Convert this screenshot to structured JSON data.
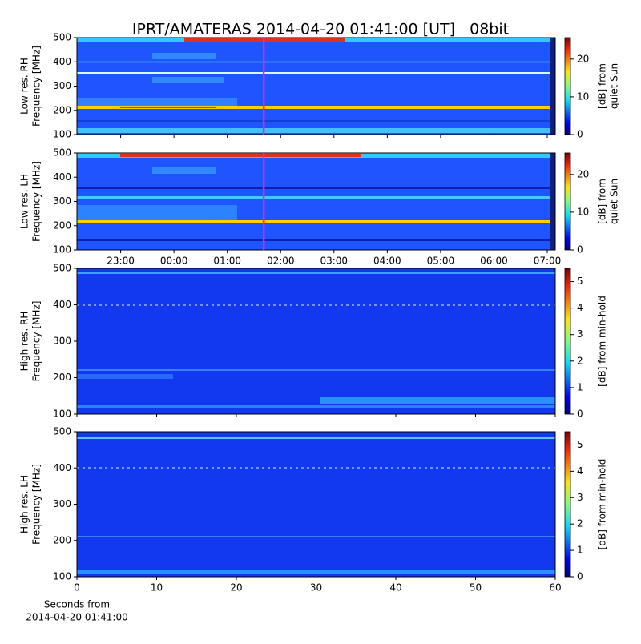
{
  "title": "IPRT/AMATERAS 2014-04-20 01:41:00 [UT]   08bit",
  "chart_data": [
    {
      "type": "heatmap",
      "ylabel": [
        "Low res. RH",
        "Frequency [MHz]"
      ],
      "ylim": [
        100,
        500
      ],
      "yticks": [
        100,
        200,
        300,
        400,
        500
      ],
      "xlim": [
        22.18,
        31.15
      ],
      "vline": 25.683,
      "vline_color": "#d62ad6",
      "colormap": "jet",
      "clim": [
        0,
        25.7
      ],
      "cticks": [
        0,
        10,
        20
      ],
      "clabel": [
        "[dB] from",
        "quiet Sun"
      ]
    },
    {
      "type": "heatmap",
      "ylabel": [
        "Low res. LH",
        "Frequency [MHz]"
      ],
      "ylim": [
        100,
        500
      ],
      "yticks": [
        100,
        200,
        300,
        400,
        500
      ],
      "xlim": [
        22.18,
        31.15
      ],
      "xticks": [
        {
          "value": 23,
          "label": "23:00"
        },
        {
          "value": 24,
          "label": "00:00"
        },
        {
          "value": 25,
          "label": "01:00"
        },
        {
          "value": 26,
          "label": "02:00"
        },
        {
          "value": 27,
          "label": "03:00"
        },
        {
          "value": 28,
          "label": "04:00"
        },
        {
          "value": 29,
          "label": "05:00"
        },
        {
          "value": 30,
          "label": "06:00"
        },
        {
          "value": 31,
          "label": "07:00"
        }
      ],
      "vline": 25.683,
      "vline_color": "#d62ad6",
      "colormap": "jet",
      "clim": [
        0,
        25.7
      ],
      "cticks": [
        0,
        10,
        20
      ],
      "clabel": [
        "[dB] from",
        "quiet Sun"
      ]
    },
    {
      "type": "heatmap",
      "ylabel": [
        "High res. RH",
        "Frequency [MHz]"
      ],
      "ylim": [
        100,
        500
      ],
      "yticks": [
        100,
        200,
        300,
        400,
        500
      ],
      "xlim": [
        0,
        60
      ],
      "colormap": "jet",
      "clim": [
        0,
        5.5
      ],
      "cticks": [
        0,
        1,
        2,
        3,
        4,
        5
      ],
      "clabel": [
        "[dB] from min-hold"
      ]
    },
    {
      "type": "heatmap",
      "ylabel": [
        "High res. LH",
        "Frequency [MHz]"
      ],
      "ylim": [
        100,
        500
      ],
      "yticks": [
        100,
        200,
        300,
        400,
        500
      ],
      "xlim": [
        0,
        60
      ],
      "xticks": [
        0,
        10,
        20,
        30,
        40,
        50,
        60
      ],
      "xlabel": [
        "Seconds from",
        "2014-04-20 01:41:00"
      ],
      "colormap": "jet",
      "clim": [
        0,
        5.5
      ],
      "cticks": [
        0,
        1,
        2,
        3,
        4,
        5
      ],
      "clabel": [
        "[dB] from min-hold"
      ]
    }
  ]
}
